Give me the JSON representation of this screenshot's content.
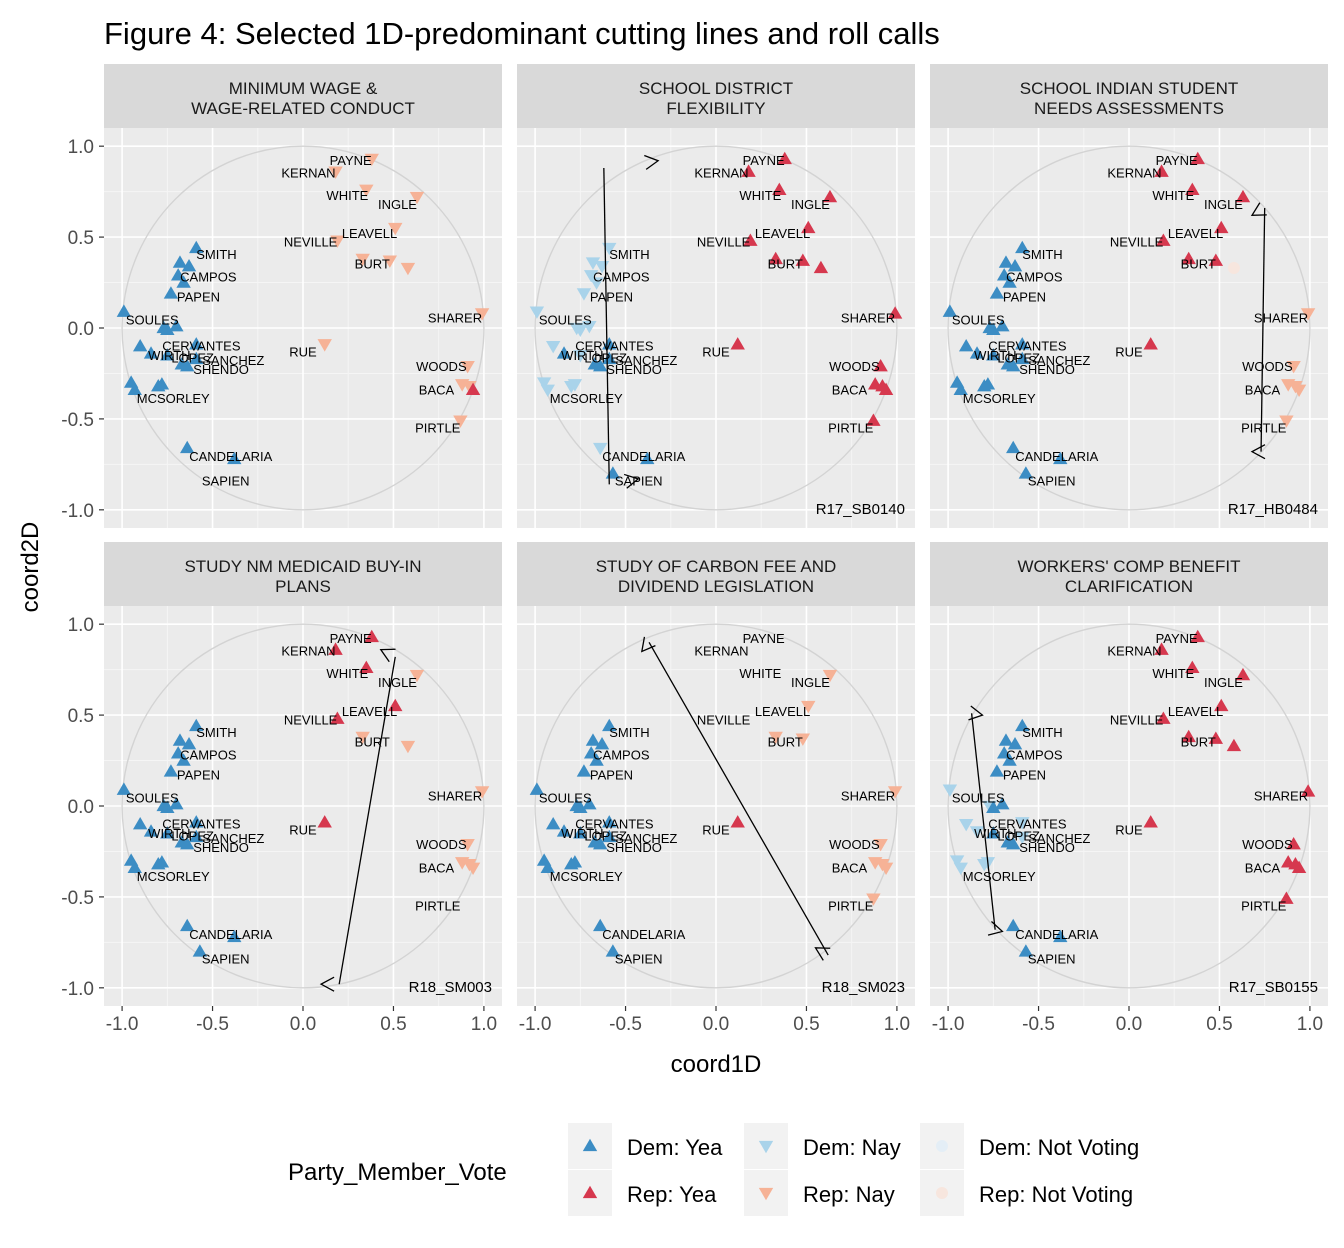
{
  "figure": {
    "title": "Figure 4: Selected 1D-predominant cutting lines and roll calls",
    "xlabel": "coord1D",
    "ylabel": "coord2D"
  },
  "colors": {
    "Dem: Yea": "#3C8DC4",
    "Dem: Nay": "#A9D3EA",
    "Dem: Not Voting": "#E4EEF6",
    "Rep: Yea": "#D6384E",
    "Rep: Nay": "#F6B296",
    "Rep: Not Voting": "#F7E6DE",
    "panel_bg": "#EBEBEB",
    "strip_bg": "#D9D9D9",
    "circle": "#D3D3D3"
  },
  "legend": {
    "title": "Party_Member_Vote",
    "items": [
      {
        "label": "Dem: Yea",
        "shape": "triangle-up"
      },
      {
        "label": "Rep: Yea",
        "shape": "triangle-up"
      },
      {
        "label": "Dem: Nay",
        "shape": "triangle-down"
      },
      {
        "label": "Rep: Nay",
        "shape": "triangle-down"
      },
      {
        "label": "Dem: Not Voting",
        "shape": "circle"
      },
      {
        "label": "Rep: Not Voting",
        "shape": "circle"
      }
    ]
  },
  "chart_data": {
    "type": "scatter",
    "xlim": [
      -1.1,
      1.1
    ],
    "ylim": [
      -1.1,
      1.1
    ],
    "xticks": [
      -1.0,
      -0.5,
      0.0,
      0.5,
      1.0
    ],
    "xtick_labels": [
      "-1.0",
      "-0.5",
      "0.0",
      "0.5",
      "1.0"
    ],
    "yticks": [
      1.0,
      0.5,
      0.0,
      -0.5,
      -1.0
    ],
    "ytick_labels": [
      "1.0",
      "0.5",
      "0.0",
      "-0.5",
      "-1.0"
    ],
    "grid": true,
    "unit_circle": true,
    "legislators": [
      {
        "name": "PAYNE",
        "party": "Rep",
        "x": 0.38,
        "y": 0.93
      },
      {
        "name": "KERNAN",
        "party": "Rep",
        "x": 0.18,
        "y": 0.86
      },
      {
        "name": "WHITE",
        "party": "Rep",
        "x": 0.35,
        "y": 0.76
      },
      {
        "name": "INGLE",
        "party": "Rep",
        "x": 0.63,
        "y": 0.72
      },
      {
        "name": "LEAVELL",
        "party": "Rep",
        "x": 0.51,
        "y": 0.55
      },
      {
        "name": "NEVILLE",
        "party": "Rep",
        "x": 0.19,
        "y": 0.48
      },
      {
        "name": "BURT",
        "party": "Rep",
        "x": 0.48,
        "y": 0.37
      },
      {
        "name": "",
        "party": "Rep",
        "x": 0.33,
        "y": 0.38
      },
      {
        "name": "",
        "party": "Rep",
        "x": 0.58,
        "y": 0.33
      },
      {
        "name": "SHARER",
        "party": "Rep",
        "x": 0.99,
        "y": 0.08
      },
      {
        "name": "RUE",
        "party": "Rep",
        "x": 0.12,
        "y": -0.09
      },
      {
        "name": "WOODS",
        "party": "Rep",
        "x": 0.91,
        "y": -0.21
      },
      {
        "name": "BACA",
        "party": "Rep",
        "x": 0.88,
        "y": -0.31
      },
      {
        "name": "",
        "party": "Rep",
        "x": 0.92,
        "y": -0.32
      },
      {
        "name": "",
        "party": "Rep",
        "x": 0.94,
        "y": -0.34
      },
      {
        "name": "PIRTLE",
        "party": "Rep",
        "x": 0.87,
        "y": -0.51
      },
      {
        "name": "SMITH",
        "party": "Dem",
        "x": -0.59,
        "y": 0.44
      },
      {
        "name": "",
        "party": "Dem",
        "x": -0.68,
        "y": 0.36
      },
      {
        "name": "",
        "party": "Dem",
        "x": -0.63,
        "y": 0.34
      },
      {
        "name": "CAMPOS",
        "party": "Dem",
        "x": -0.69,
        "y": 0.29
      },
      {
        "name": "",
        "party": "Dem",
        "x": -0.66,
        "y": 0.25
      },
      {
        "name": "PAPEN",
        "party": "Dem",
        "x": -0.73,
        "y": 0.19
      },
      {
        "name": "SOULES",
        "party": "Dem",
        "x": -0.99,
        "y": 0.09
      },
      {
        "name": "",
        "party": "Dem",
        "x": -0.77,
        "y": 0.0
      },
      {
        "name": "",
        "party": "Dem",
        "x": -0.75,
        "y": -0.01
      },
      {
        "name": "",
        "party": "Dem",
        "x": -0.7,
        "y": 0.01
      },
      {
        "name": "CERVANTES",
        "party": "Dem",
        "x": -0.59,
        "y": -0.09
      },
      {
        "name": "WIRTH",
        "party": "Dem",
        "x": -0.9,
        "y": -0.1
      },
      {
        "name": "",
        "party": "Dem",
        "x": -0.84,
        "y": -0.14
      },
      {
        "name": "SANCHEZ",
        "party": "Dem",
        "x": -0.59,
        "y": -0.17
      },
      {
        "name": "LOPEZ",
        "party": "Dem",
        "x": -0.75,
        "y": -0.15
      },
      {
        "name": "",
        "party": "Dem",
        "x": -0.67,
        "y": -0.2
      },
      {
        "name": "SHENDO",
        "party": "Dem",
        "x": -0.64,
        "y": -0.21
      },
      {
        "name": "",
        "party": "Dem",
        "x": -0.95,
        "y": -0.3
      },
      {
        "name": "MCSORLEY",
        "party": "Dem",
        "x": -0.93,
        "y": -0.34
      },
      {
        "name": "",
        "party": "Dem",
        "x": -0.8,
        "y": -0.32
      },
      {
        "name": "",
        "party": "Dem",
        "x": -0.78,
        "y": -0.31
      },
      {
        "name": "CANDELARIA",
        "party": "Dem",
        "x": -0.64,
        "y": -0.66
      },
      {
        "name": "",
        "party": "Dem",
        "x": -0.38,
        "y": -0.72
      },
      {
        "name": "SAPIEN",
        "party": "Dem",
        "x": -0.57,
        "y": -0.8
      }
    ],
    "panels": [
      {
        "strip": [
          "MINIMUM WAGE &",
          "WAGE-RELATED CONDUCT"
        ],
        "rollcall": "",
        "votes": {
          "Rep": "Nay",
          "Dem": "Yea"
        },
        "exceptions": {
          "14": "Yea",
          "39": "Absent"
        },
        "arrow": null
      },
      {
        "strip": [
          "SCHOOL DISTRICT",
          "FLEXIBILITY"
        ],
        "rollcall": "R17_SB0140",
        "votes": {
          "Rep": "Yea",
          "Dem": "Nay"
        },
        "exceptions": {
          "26": "Yea",
          "28": "Yea",
          "29": "Yea",
          "31": "Yea",
          "32": "Yea",
          "38": "Yea",
          "39": "Yea",
          "37": "Nay",
          "16": "Nay"
        },
        "arrow": {
          "from": [
            -0.62,
            0.88
          ],
          "to": [
            -0.59,
            -0.86
          ],
          "head_from": [
            -0.32,
            0.92
          ],
          "head_to": [
            -0.43,
            -0.83
          ]
        }
      },
      {
        "strip": [
          "SCHOOL INDIAN STUDENT",
          "NEEDS ASSESSMENTS"
        ],
        "rollcall": "R17_HB0484",
        "votes": {
          "Rep": "Yea",
          "Dem": "Yea"
        },
        "exceptions": {
          "8": "NotVoting",
          "9": "Nay",
          "11": "Nay",
          "12": "Nay",
          "13": "Nay",
          "14": "Nay",
          "15": "Nay"
        },
        "arrow": {
          "from": [
            0.75,
            0.66
          ],
          "to": [
            0.73,
            -0.68
          ],
          "head_from": [
            0.68,
            0.62
          ],
          "head_to": [
            0.68,
            -0.68
          ]
        }
      },
      {
        "strip": [
          "STUDY NM MEDICAID BUY-IN",
          "PLANS"
        ],
        "rollcall": "R18_SM003",
        "votes": {
          "Rep": "Nay",
          "Dem": "Yea"
        },
        "exceptions": {
          "0": "Yea",
          "1": "Yea",
          "2": "Yea",
          "4": "Yea",
          "5": "Yea",
          "10": "Yea",
          "6": "Absent",
          "15": "Absent"
        },
        "arrow": {
          "from": [
            0.2,
            -0.98
          ],
          "to": [
            0.51,
            0.82
          ],
          "head_from": [
            0.1,
            -0.98
          ],
          "head_to": [
            0.43,
            0.86
          ]
        }
      },
      {
        "strip": [
          "STUDY OF CARBON FEE AND",
          "DIVIDEND LEGISLATION"
        ],
        "rollcall": "R18_SM023",
        "votes": {
          "Rep": "Nay",
          "Dem": "Yea"
        },
        "exceptions": {
          "10": "Yea",
          "0": "Absent",
          "1": "Absent",
          "2": "Absent",
          "5": "Absent",
          "8": "Absent",
          "38": "Absent"
        },
        "arrow": {
          "from": [
            -0.37,
            0.9
          ],
          "to": [
            0.62,
            -0.82
          ],
          "head_from": [
            -0.41,
            0.85
          ],
          "head_to": [
            0.55,
            -0.78
          ]
        }
      },
      {
        "strip": [
          "WORKERS' COMP BENEFIT",
          "CLARIFICATION"
        ],
        "rollcall": "R17_SB0155",
        "votes": {
          "Rep": "Yea",
          "Dem": "Yea"
        },
        "exceptions": {
          "22": "Nay",
          "23": "Nay",
          "26": "Nay",
          "27": "Nay",
          "28": "Nay",
          "29": "Nay",
          "33": "Nay",
          "34": "Nay",
          "35": "Nay",
          "36": "Nay"
        },
        "arrow": {
          "from": [
            -0.87,
            0.51
          ],
          "to": [
            -0.74,
            -0.68
          ],
          "head_from": [
            -0.81,
            0.5
          ],
          "head_to": [
            -0.7,
            -0.69
          ]
        }
      }
    ]
  }
}
